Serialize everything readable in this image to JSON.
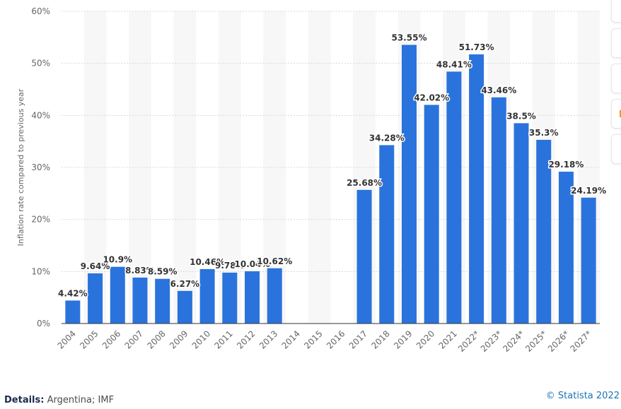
{
  "chart_data": {
    "type": "bar",
    "ylabel": "Inflation rate compared to previous year",
    "ylim": [
      0,
      60
    ],
    "yticks": [
      0,
      10,
      20,
      30,
      40,
      50,
      60
    ],
    "ytick_labels": [
      "0%",
      "10%",
      "20%",
      "30%",
      "40%",
      "50%",
      "60%"
    ],
    "categories": [
      "2004",
      "2005",
      "2006",
      "2007",
      "2008",
      "2009",
      "2010",
      "2011",
      "2012",
      "2013",
      "2014",
      "2015",
      "2016",
      "2017",
      "2018",
      "2019",
      "2020",
      "2021",
      "2022*",
      "2023*",
      "2024*",
      "2025*",
      "2026*",
      "2027*"
    ],
    "values": [
      4.42,
      9.64,
      10.9,
      8.83,
      8.59,
      6.27,
      10.46,
      9.78,
      10.04,
      10.62,
      null,
      null,
      null,
      25.68,
      34.28,
      53.55,
      42.02,
      48.41,
      51.73,
      43.46,
      38.5,
      35.3,
      29.18,
      24.19
    ],
    "value_labels": [
      "4.42%",
      "9.64%",
      "10.9%",
      "8.83%",
      "8.59%",
      "6.27%",
      "10.46%",
      "9.78%",
      "10.04%",
      "10.62%",
      "",
      "",
      "",
      "25.68%",
      "34.28%",
      "53.55%",
      "42.02%",
      "48.41%",
      "51.73%",
      "43.46%",
      "38.5%",
      "35.3%",
      "29.18%",
      "24.19%"
    ],
    "bar_color": "#2a73dd",
    "grid": true
  },
  "footer": {
    "details_label": "Details:",
    "details_text": "Argentina; IMF",
    "copyright": "© Statista 2022"
  }
}
